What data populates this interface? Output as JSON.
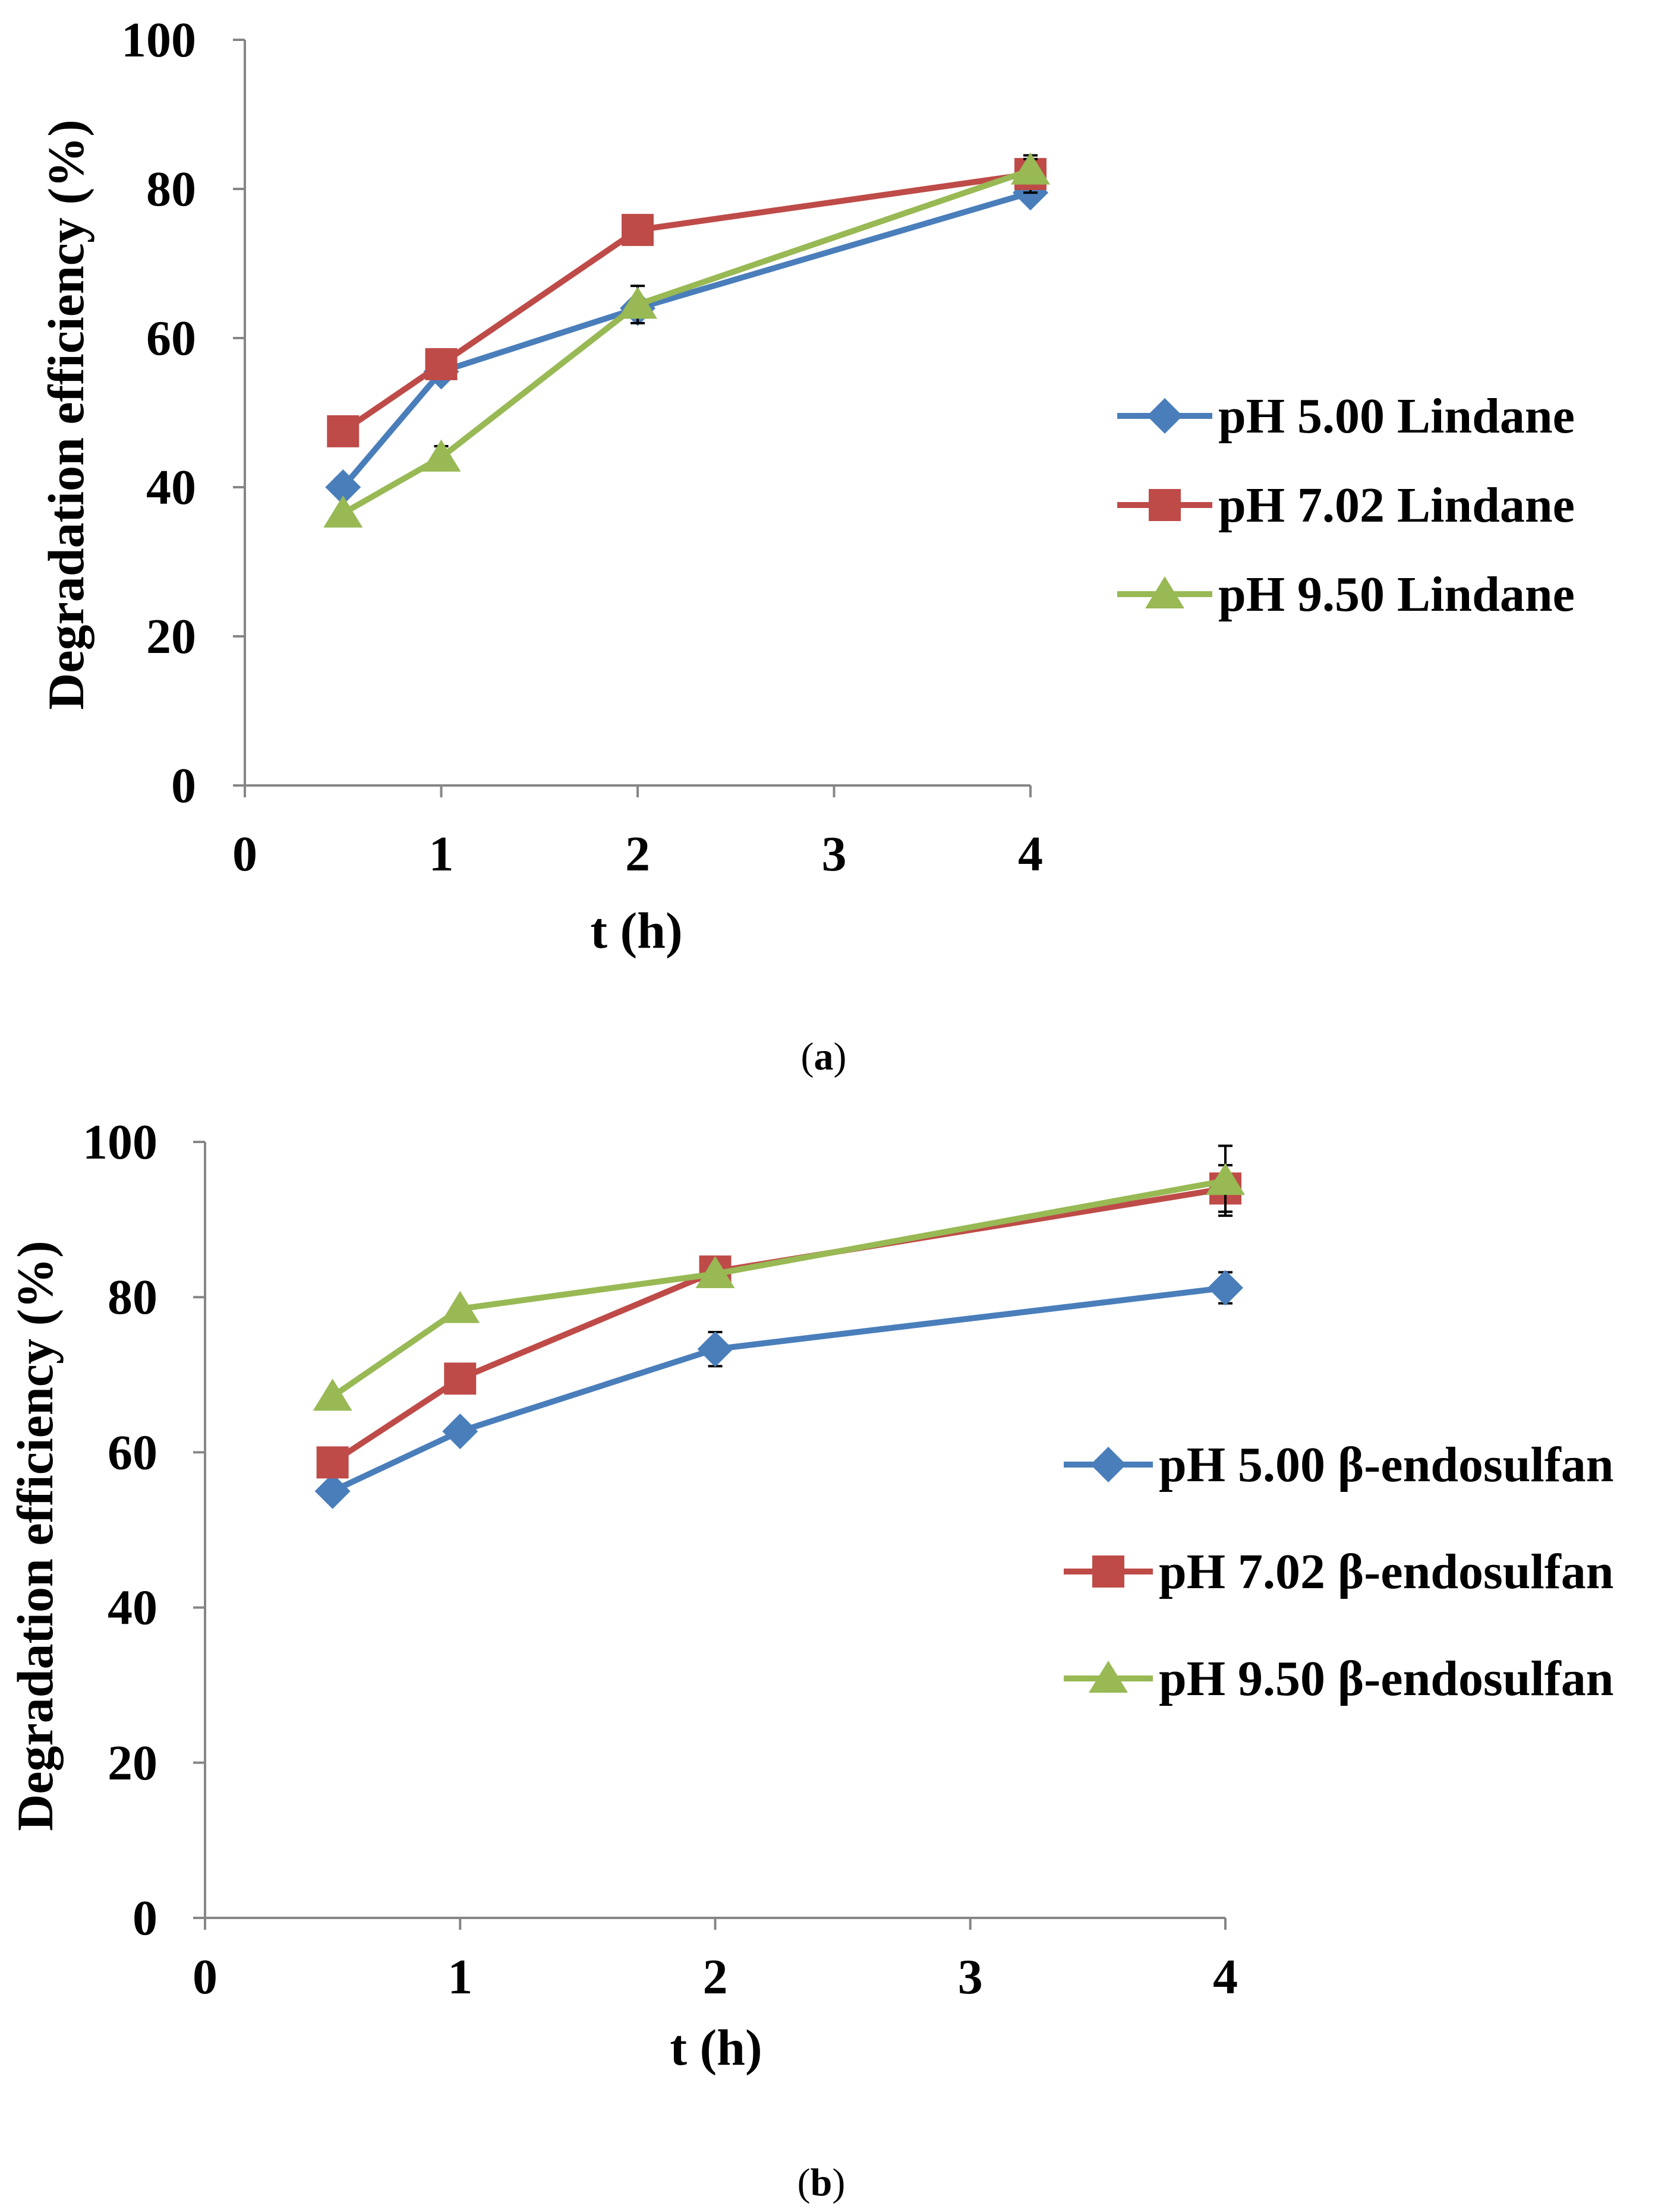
{
  "colors": {
    "ph5": "#4a7ebb",
    "ph7": "#be4b48",
    "ph9": "#98b954"
  },
  "chart_data": [
    {
      "id": "a",
      "type": "line",
      "caption": "a",
      "title": "",
      "xlabel": "t (h)",
      "ylabel": "Degradation efficiency (%)",
      "xlim": [
        0,
        4
      ],
      "ylim": [
        0,
        100
      ],
      "xticks": [
        "0",
        "1",
        "2",
        "3",
        "4"
      ],
      "yticks": [
        "0",
        "20",
        "40",
        "60",
        "80",
        "100"
      ],
      "x": [
        0.5,
        1,
        2,
        4
      ],
      "series": [
        {
          "name": "pH 5.00 Lindane",
          "marker": "diamond",
          "color": "#4a7ebb",
          "values": [
            40,
            55.5,
            64,
            79.5
          ],
          "errors": [
            0,
            0,
            0,
            0
          ]
        },
        {
          "name": "pH 7.02 Lindane",
          "marker": "square",
          "color": "#be4b48",
          "values": [
            47.5,
            56.5,
            74.5,
            82
          ],
          "errors": [
            0,
            0,
            0,
            2.5
          ]
        },
        {
          "name": "pH 9.50 Lindane",
          "marker": "triangle",
          "color": "#98b954",
          "values": [
            36.5,
            44,
            64.5,
            82.5
          ],
          "errors": [
            0,
            1.5,
            2.5,
            1.5
          ]
        }
      ],
      "legend": "right"
    },
    {
      "id": "b",
      "type": "line",
      "caption": "b",
      "title": "",
      "xlabel": "t (h)",
      "ylabel": "Degradation efficiency (%)",
      "xlim": [
        0,
        4
      ],
      "ylim": [
        0,
        100
      ],
      "xticks": [
        "0",
        "1",
        "2",
        "3",
        "4"
      ],
      "yticks": [
        "0",
        "20",
        "40",
        "60",
        "80",
        "100"
      ],
      "x": [
        0.5,
        1,
        2,
        4
      ],
      "series": [
        {
          "name": "pH 5.00 β-endosulfan",
          "marker": "diamond",
          "color": "#4a7ebb",
          "values": [
            55,
            62.7,
            73.3,
            81.2
          ],
          "errors": [
            0,
            0,
            2.2,
            2.0
          ]
        },
        {
          "name": "pH 7.02 β-endosulfan",
          "marker": "square",
          "color": "#be4b48",
          "values": [
            58.7,
            69.5,
            83.3,
            94.0
          ],
          "errors": [
            0,
            0,
            0,
            3.0
          ]
        },
        {
          "name": "pH 9.50 β-endosulfan",
          "marker": "triangle",
          "color": "#98b954",
          "values": [
            67.2,
            78.5,
            83.0,
            95.0
          ],
          "errors": [
            0,
            0,
            0,
            4.5
          ]
        }
      ],
      "legend": "right"
    }
  ]
}
